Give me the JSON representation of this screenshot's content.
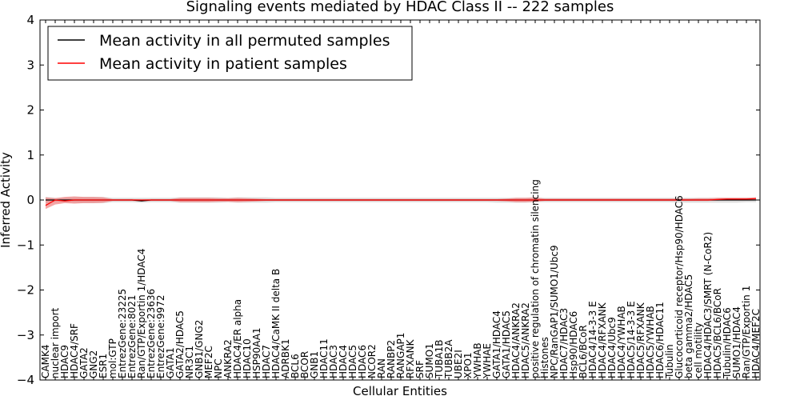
{
  "chart_data": {
    "type": "line",
    "title": "Signaling events mediated by HDAC Class II -- 222 samples",
    "xlabel": "Cellular Entities",
    "ylabel": "Inferred Activity",
    "ylim": [
      -4,
      4
    ],
    "yticks": [
      4,
      3,
      2,
      1,
      0,
      -1,
      -2,
      -3,
      -4
    ],
    "yticklabels": [
      "4",
      "3",
      "2",
      "1",
      "0",
      "−1",
      "−2",
      "−3",
      "−4"
    ],
    "grid": false,
    "legend_position": "top-left",
    "legend": [
      {
        "label": "Mean activity in all permuted samples",
        "color": "#000000"
      },
      {
        "label": "Mean activity in patient samples",
        "color": "#ff0000"
      }
    ],
    "colors": {
      "permuted": "#000000",
      "patient": "#ff0000",
      "patient_band": "#f08080",
      "permuted_band": "#c8c8c8"
    },
    "categories": [
      "CAMK4",
      "nuclear import",
      "HDAC9",
      "HDAC4/SRF",
      "GATA2",
      "GNG2",
      "ESR1",
      "mol:GTP",
      "EntrezGene:23225",
      "EntrezGene:8021",
      "Ran/GTP/Exportin 1/HDAC4",
      "EntrezGene:23636",
      "EntrezGene:9972",
      "GATA1",
      "GATA2/HDAC5",
      "NR3C1",
      "GNB1/GNG2",
      "MEF2C",
      "NPC",
      "ANKRA2",
      "HDAC4/ER alpha",
      "HDAC10",
      "HSP90AA1",
      "HDAC7",
      "HDAC4/CaMK II delta B",
      "ADRBK1",
      "BCL6",
      "BCOR",
      "GNB1",
      "HDAC11",
      "HDAC3",
      "HDAC4",
      "HDAC5",
      "HDAC6",
      "NCOR2",
      "RAN",
      "RANBP2",
      "RANGAP1",
      "RFXANK",
      "SRF",
      "SUMO1",
      "TUBA1B",
      "TUBB2A",
      "UBE2I",
      "XPO1",
      "YWHAB",
      "YWHAE",
      "GATA1/HDAC4",
      "GATA1/HDAC5",
      "HDAC4/ANKRA2",
      "HDAC5/ANKRA2",
      "positive regulation of chromatin silencing",
      "Histones",
      "NPC/RanGAP1/SUMO1/Ubc9",
      "HDAC7/HDAC3",
      "Hsp90/HDAC6",
      "BCL6/BCoR",
      "HDAC4/14-3-3 E",
      "HDAC4/RFXANK",
      "HDAC4/Ubc9",
      "HDAC4/YWHAB",
      "HDAC5/14-3-3 E",
      "HDAC5/RFXANK",
      "HDAC5/YWHAB",
      "HDAC6/HDAC11",
      "Tubulin",
      "Glucocorticoid receptor/Hsp90/HDAC6",
      "beta gamma2/HDAC5",
      "cell motility",
      "HDAC4/HDAC3/SMRT (N-CoR2)",
      "HDAC5/BCL6/BCoR",
      "Tubulin/HDAC6",
      "SUMO1/HDAC4",
      "Ran/GTP/Exportin 1",
      "HDAC4/MEF2C"
    ],
    "series": [
      {
        "name": "Mean activity in all permuted samples",
        "values": [
          0.0,
          0.0,
          0.0,
          0.0,
          0.0,
          0.0,
          0.0,
          0.0,
          0.0,
          0.0,
          -0.02,
          0.0,
          0.0,
          0.0,
          0.0,
          0.0,
          0.0,
          0.0,
          0.0,
          0.0,
          0.0,
          0.0,
          0.0,
          0.0,
          0.0,
          0.0,
          0.0,
          0.0,
          0.0,
          0.0,
          0.0,
          0.0,
          0.0,
          0.0,
          0.0,
          0.0,
          0.0,
          0.0,
          0.0,
          0.0,
          0.0,
          0.0,
          0.0,
          0.0,
          0.0,
          0.0,
          0.0,
          0.0,
          0.0,
          0.0,
          0.0,
          0.0,
          0.0,
          0.0,
          0.0,
          0.0,
          0.0,
          0.0,
          0.0,
          0.0,
          0.0,
          0.0,
          0.0,
          0.0,
          0.0,
          0.0,
          0.0,
          0.0,
          0.0,
          0.0,
          0.0,
          0.0,
          0.0,
          0.0,
          0.0
        ]
      },
      {
        "name": "Mean activity in patient samples",
        "values": [
          -0.12,
          0.0,
          -0.02,
          0.0,
          0.0,
          0.0,
          0.0,
          0.0,
          0.0,
          0.0,
          0.0,
          0.0,
          0.0,
          0.0,
          0.0,
          0.0,
          0.0,
          0.0,
          0.0,
          0.0,
          0.0,
          0.0,
          0.0,
          0.0,
          0.0,
          0.0,
          0.0,
          0.0,
          0.0,
          0.0,
          0.0,
          0.0,
          0.0,
          0.0,
          0.0,
          0.0,
          0.0,
          0.0,
          0.0,
          0.0,
          0.0,
          0.0,
          0.0,
          0.0,
          0.0,
          0.0,
          0.0,
          0.0,
          0.0,
          0.0,
          0.0,
          0.0,
          0.0,
          0.0,
          0.0,
          0.0,
          0.0,
          0.0,
          0.0,
          0.0,
          0.0,
          0.0,
          0.0,
          0.0,
          0.0,
          0.0,
          0.0,
          0.0,
          0.0,
          0.0,
          0.01,
          0.02,
          0.02,
          0.02,
          0.03
        ]
      }
    ],
    "bands": [
      {
        "name": "permuted spread",
        "upper": [
          0.07,
          0.05,
          0.05,
          0.06,
          0.07,
          0.07,
          0.07,
          0.05,
          0.05,
          0.05,
          0.05,
          0.05,
          0.05,
          0.05,
          0.06,
          0.06,
          0.06,
          0.06,
          0.06,
          0.05,
          0.06,
          0.06,
          0.06,
          0.06,
          0.05,
          0.05,
          0.05,
          0.05,
          0.05,
          0.05,
          0.05,
          0.05,
          0.05,
          0.05,
          0.05,
          0.05,
          0.05,
          0.05,
          0.05,
          0.05,
          0.05,
          0.05,
          0.05,
          0.05,
          0.05,
          0.05,
          0.05,
          0.05,
          0.05,
          0.05,
          0.05,
          0.05,
          0.05,
          0.05,
          0.05,
          0.05,
          0.05,
          0.05,
          0.05,
          0.05,
          0.05,
          0.05,
          0.05,
          0.05,
          0.05,
          0.05,
          0.05,
          0.05,
          0.05,
          0.05,
          0.05,
          0.05,
          0.05,
          0.05,
          0.05
        ],
        "lower": [
          -0.07,
          -0.05,
          -0.05,
          -0.06,
          -0.07,
          -0.07,
          -0.07,
          -0.05,
          -0.05,
          -0.05,
          -0.06,
          -0.05,
          -0.05,
          -0.05,
          -0.06,
          -0.06,
          -0.06,
          -0.06,
          -0.06,
          -0.05,
          -0.06,
          -0.06,
          -0.06,
          -0.06,
          -0.05,
          -0.05,
          -0.05,
          -0.05,
          -0.05,
          -0.05,
          -0.05,
          -0.05,
          -0.05,
          -0.05,
          -0.05,
          -0.05,
          -0.05,
          -0.05,
          -0.05,
          -0.05,
          -0.05,
          -0.05,
          -0.05,
          -0.05,
          -0.05,
          -0.05,
          -0.05,
          -0.06,
          -0.06,
          -0.06,
          -0.06,
          -0.05,
          -0.05,
          -0.05,
          -0.05,
          -0.05,
          -0.05,
          -0.05,
          -0.05,
          -0.05,
          -0.05,
          -0.05,
          -0.05,
          -0.05,
          -0.05,
          -0.05,
          -0.06,
          -0.06,
          -0.06,
          -0.06,
          -0.06,
          -0.06,
          -0.06,
          -0.05,
          -0.05
        ]
      },
      {
        "name": "patient spread",
        "upper": [
          0.06,
          0.04,
          0.07,
          0.08,
          0.07,
          0.07,
          0.06,
          0.02,
          0.02,
          0.02,
          0.01,
          0.02,
          0.02,
          0.02,
          0.05,
          0.05,
          0.05,
          0.05,
          0.04,
          0.04,
          0.05,
          0.04,
          0.03,
          0.02,
          0.02,
          0.02,
          0.02,
          0.02,
          0.02,
          0.02,
          0.02,
          0.02,
          0.02,
          0.02,
          0.02,
          0.02,
          0.02,
          0.02,
          0.02,
          0.02,
          0.02,
          0.02,
          0.02,
          0.02,
          0.02,
          0.02,
          0.02,
          0.02,
          0.03,
          0.05,
          0.05,
          0.06,
          0.03,
          0.03,
          0.03,
          0.03,
          0.03,
          0.03,
          0.03,
          0.03,
          0.03,
          0.03,
          0.03,
          0.03,
          0.03,
          0.03,
          0.03,
          0.03,
          0.04,
          0.04,
          0.05,
          0.05,
          0.05,
          0.05,
          0.06
        ],
        "lower": [
          -0.2,
          -0.1,
          -0.07,
          -0.08,
          -0.07,
          -0.07,
          -0.06,
          -0.02,
          -0.02,
          -0.02,
          -0.03,
          -0.02,
          -0.02,
          -0.02,
          -0.05,
          -0.05,
          -0.05,
          -0.05,
          -0.04,
          -0.04,
          -0.05,
          -0.04,
          -0.03,
          -0.02,
          -0.02,
          -0.02,
          -0.02,
          -0.02,
          -0.02,
          -0.02,
          -0.02,
          -0.02,
          -0.02,
          -0.02,
          -0.02,
          -0.02,
          -0.02,
          -0.02,
          -0.02,
          -0.02,
          -0.02,
          -0.02,
          -0.02,
          -0.02,
          -0.02,
          -0.02,
          -0.02,
          -0.02,
          -0.03,
          -0.05,
          -0.05,
          -0.04,
          -0.02,
          -0.02,
          -0.02,
          -0.02,
          -0.02,
          -0.02,
          -0.02,
          -0.02,
          -0.02,
          -0.02,
          -0.02,
          -0.02,
          -0.02,
          -0.02,
          -0.02,
          -0.02,
          -0.02,
          -0.02,
          -0.01,
          0.0,
          0.0,
          0.0,
          0.0
        ]
      }
    ]
  }
}
